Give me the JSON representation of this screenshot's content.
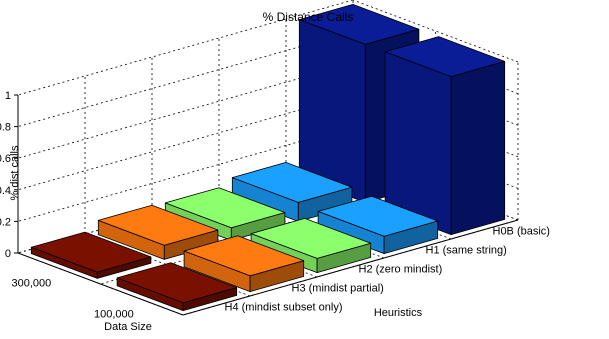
{
  "chart_data": {
    "type": "bar",
    "title": "% Distance Calls",
    "zlabel": "% dist calls",
    "ylabel": "Data Size",
    "xlabel": "Heuristics",
    "zlim": [
      0,
      1
    ],
    "zticks": [
      "0",
      "0.2",
      "0.4",
      "0.6",
      "0.8",
      "1"
    ],
    "grid": true,
    "data_sizes": [
      "300,000",
      "100,000"
    ],
    "heuristics": [
      "H0B (basic)",
      "H1 (same string)",
      "H2 (zero mindist)",
      "H3 (mindist partial)",
      "H4 (mindist subset only)"
    ],
    "series": [
      {
        "name": "300,000",
        "values": [
          1.0,
          0.12,
          0.08,
          0.09,
          0.04
        ]
      },
      {
        "name": "100,000",
        "values": [
          1.0,
          0.11,
          0.09,
          0.1,
          0.05
        ]
      }
    ],
    "colors": {
      "H0B (basic)": "#0a1c96",
      "H1 (same string)": "#1aa0ff",
      "H2 (zero mindist)": "#8cff6c",
      "H3 (mindist partial)": "#ff7a10",
      "H4 (mindist subset only)": "#7a1000"
    }
  }
}
